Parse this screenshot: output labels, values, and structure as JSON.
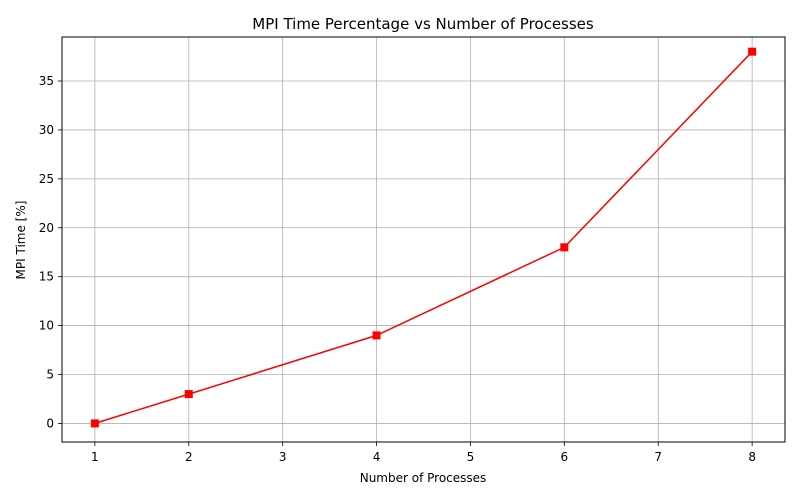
{
  "chart_data": {
    "type": "line",
    "title": "MPI Time Percentage vs Number of Processes",
    "xlabel": "Number of Processes",
    "ylabel": "MPI Time [%]",
    "xlim": [
      0.65,
      8.35
    ],
    "ylim": [
      -1.9,
      39.5
    ],
    "xticks": [
      1,
      2,
      3,
      4,
      5,
      6,
      7,
      8
    ],
    "yticks": [
      0,
      5,
      10,
      15,
      20,
      25,
      30,
      35
    ],
    "grid": true,
    "legend": "none",
    "series": [
      {
        "color": "#ff0000",
        "marker": "square",
        "x": [
          1,
          2,
          4,
          6,
          8
        ],
        "y": [
          0,
          3,
          9,
          18,
          38
        ]
      }
    ]
  }
}
